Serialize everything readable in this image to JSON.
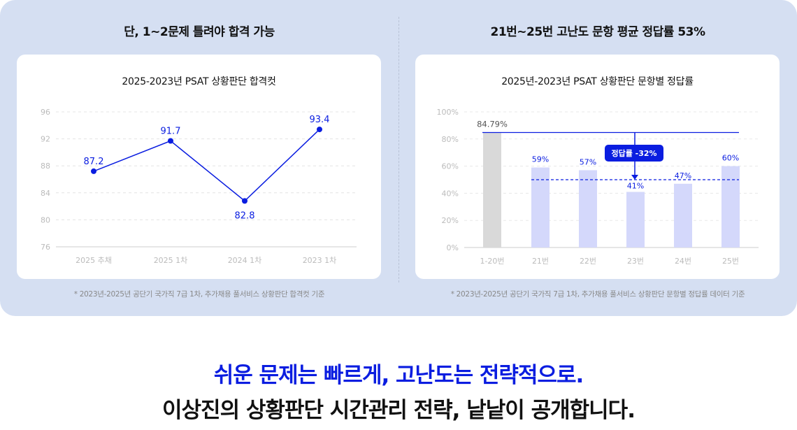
{
  "left": {
    "heading": "단, 1~2문제 틀려야 합격 가능",
    "note": "* 2023년-2025년 공단기 국가직 7급 1차, 추가채용 풀서비스 상황판단 합격컷 기준",
    "chart_data": {
      "type": "line",
      "title": "2025-2023년 PSAT 상황판단 합격컷",
      "categories": [
        "2025 추채",
        "2025 1차",
        "2024 1차",
        "2023 1차"
      ],
      "values": [
        87.2,
        91.7,
        82.8,
        93.4
      ],
      "data_labels": [
        "87.2",
        "91.7",
        "82.8",
        "93.4"
      ],
      "yticks": [
        "76",
        "80",
        "84",
        "88",
        "92",
        "96"
      ],
      "ylim": [
        76,
        96
      ],
      "grid": true,
      "color": "#0a1de0"
    }
  },
  "right": {
    "heading": "21번~25번 고난도 문항 평균 정답률 53%",
    "note": "* 2023년-2025년 공단기 국가직 7급 1차, 추가채용 풀서비스 상황판단 문항별 정답률 데이터 기준",
    "chart_data": {
      "type": "bar",
      "title": "2025년-2023년 PSAT 상황판단 문항별 정답률",
      "categories": [
        "1-20번",
        "21번",
        "22번",
        "23번",
        "24번",
        "25번"
      ],
      "values": [
        84.79,
        59,
        57,
        41,
        47,
        60
      ],
      "data_labels": [
        "84.79%",
        "59%",
        "57%",
        "41%",
        "47%",
        "60%"
      ],
      "yticks": [
        "0%",
        "20%",
        "40%",
        "60%",
        "80%",
        "100%"
      ],
      "ylim": [
        0,
        100
      ],
      "grid": true,
      "bar_colors": [
        "#d9d9d9",
        "#d4d8fb"
      ],
      "reference_line": 84.79,
      "dashed_line": 50,
      "annotation": "정답률 -32%",
      "accent": "#0a1de0"
    }
  },
  "tagline": {
    "line1": "쉬운 문제는 빠르게, 고난도는 전략적으로.",
    "line2": "이상진의 상황판단 시간관리 전략, 낱낱이 공개합니다."
  }
}
